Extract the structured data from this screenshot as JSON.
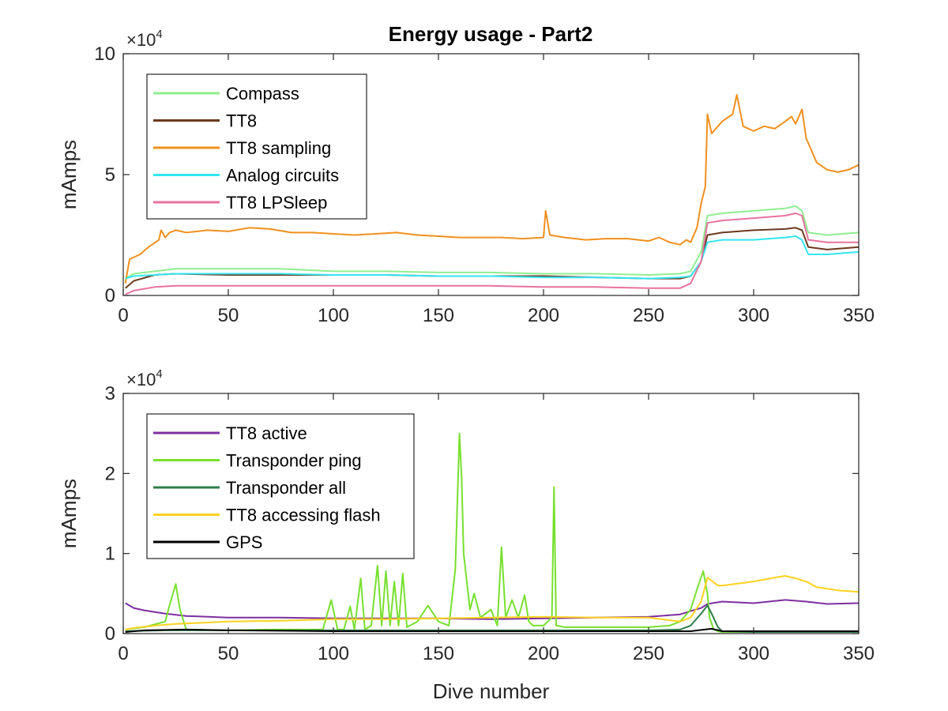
{
  "title": "Energy usage - Part2",
  "chart_data": [
    {
      "type": "line",
      "title": "Energy usage - Part2",
      "xlabel": "",
      "ylabel": "mAmps",
      "exponent_label": "×10",
      "exponent_power": "4",
      "xlim": [
        0,
        350
      ],
      "ylim": [
        0,
        100000
      ],
      "xticks": [
        0,
        50,
        100,
        150,
        200,
        250,
        300,
        350
      ],
      "yticks": [
        0,
        50000,
        100000
      ],
      "ytick_labels": [
        "0",
        "5",
        "10"
      ],
      "xtick_labels": [
        "0",
        "50",
        "100",
        "150",
        "200",
        "250",
        "300",
        "350"
      ],
      "legend_position": "top-left",
      "grid": false,
      "series": [
        {
          "name": "Compass",
          "color": "#90ee90",
          "x": [
            1,
            5,
            15,
            25,
            50,
            75,
            100,
            125,
            150,
            175,
            200,
            225,
            250,
            265,
            270,
            275,
            278,
            285,
            300,
            315,
            320,
            323,
            326,
            335,
            350
          ],
          "y": [
            7000,
            9000,
            10000,
            11000,
            11000,
            11000,
            10000,
            10000,
            9500,
            9500,
            9000,
            9000,
            8500,
            9000,
            10000,
            18000,
            33000,
            34000,
            35000,
            36000,
            37000,
            35000,
            26000,
            25000,
            26000
          ]
        },
        {
          "name": "TT8",
          "color": "#6b3a1e",
          "x": [
            1,
            5,
            15,
            25,
            50,
            75,
            100,
            125,
            150,
            175,
            200,
            225,
            250,
            265,
            270,
            275,
            278,
            285,
            300,
            315,
            320,
            323,
            326,
            335,
            350
          ],
          "y": [
            3000,
            6000,
            8500,
            9000,
            8500,
            8500,
            8500,
            8500,
            8000,
            8000,
            8000,
            7500,
            7000,
            7000,
            8000,
            14000,
            25000,
            26000,
            27000,
            27500,
            28000,
            27000,
            20000,
            19000,
            20000
          ]
        },
        {
          "name": "TT8 sampling",
          "color": "#f0901e",
          "x": [
            1,
            3,
            8,
            12,
            17,
            18,
            20,
            22,
            25,
            30,
            40,
            50,
            60,
            70,
            80,
            90,
            100,
            110,
            120,
            130,
            140,
            150,
            160,
            170,
            180,
            190,
            200,
            201,
            203,
            210,
            220,
            230,
            240,
            250,
            255,
            260,
            265,
            268,
            270,
            273,
            275,
            277,
            278,
            280,
            285,
            290,
            292,
            295,
            300,
            305,
            310,
            315,
            318,
            320,
            323,
            325,
            330,
            335,
            340,
            345,
            350
          ],
          "y": [
            5000,
            15000,
            17000,
            20000,
            23000,
            27000,
            24000,
            26000,
            27000,
            26000,
            27000,
            26500,
            28000,
            27500,
            26000,
            26000,
            25500,
            25000,
            25500,
            26000,
            25000,
            24500,
            24000,
            24000,
            24000,
            23500,
            24000,
            35000,
            25000,
            24000,
            23000,
            23500,
            23500,
            22500,
            24000,
            22000,
            21000,
            23000,
            22000,
            28000,
            38000,
            45000,
            75000,
            67000,
            72000,
            75000,
            83000,
            70000,
            68000,
            70000,
            69000,
            72000,
            74000,
            71000,
            77000,
            65000,
            55000,
            52000,
            51000,
            52000,
            54000
          ]
        },
        {
          "name": "Analog circuits",
          "color": "#33e6f0",
          "x": [
            1,
            5,
            15,
            25,
            50,
            75,
            100,
            125,
            150,
            175,
            200,
            225,
            250,
            265,
            270,
            275,
            278,
            285,
            300,
            315,
            320,
            323,
            326,
            335,
            350
          ],
          "y": [
            7000,
            8000,
            8500,
            9000,
            9000,
            9000,
            8500,
            8500,
            8000,
            8000,
            7500,
            7500,
            7000,
            7500,
            8000,
            14000,
            22000,
            23000,
            23000,
            24000,
            24500,
            23000,
            17000,
            17000,
            18000
          ]
        },
        {
          "name": "TT8 LPSleep",
          "color": "#e8729e",
          "x": [
            1,
            5,
            15,
            25,
            50,
            75,
            100,
            125,
            150,
            175,
            200,
            225,
            250,
            265,
            270,
            275,
            278,
            285,
            300,
            315,
            320,
            323,
            326,
            335,
            350
          ],
          "y": [
            500,
            2000,
            3500,
            4000,
            4000,
            4000,
            4000,
            4000,
            4000,
            4000,
            3500,
            3500,
            3000,
            3000,
            5000,
            14000,
            30000,
            31000,
            32000,
            33000,
            34000,
            33000,
            23000,
            22000,
            22000
          ]
        }
      ]
    },
    {
      "type": "line",
      "title": "",
      "xlabel": "Dive number",
      "ylabel": "mAmps",
      "exponent_label": "×10",
      "exponent_power": "4",
      "xlim": [
        0,
        350
      ],
      "ylim": [
        0,
        30000
      ],
      "xticks": [
        0,
        50,
        100,
        150,
        200,
        250,
        300,
        350
      ],
      "yticks": [
        0,
        10000,
        20000,
        30000
      ],
      "ytick_labels": [
        "0",
        "1",
        "2",
        "3"
      ],
      "xtick_labels": [
        "0",
        "50",
        "100",
        "150",
        "200",
        "250",
        "300",
        "350"
      ],
      "legend_position": "top-left",
      "grid": false,
      "series": [
        {
          "name": "TT8 active",
          "color": "#7e2fa0",
          "x": [
            1,
            5,
            10,
            20,
            30,
            50,
            75,
            100,
            125,
            150,
            175,
            200,
            225,
            250,
            265,
            270,
            275,
            278,
            285,
            300,
            315,
            325,
            335,
            350
          ],
          "y": [
            3800,
            3200,
            2900,
            2500,
            2200,
            2000,
            2000,
            1900,
            1900,
            1900,
            1800,
            1900,
            2000,
            2100,
            2400,
            2800,
            3200,
            3700,
            4000,
            3800,
            4200,
            4000,
            3700,
            3800
          ]
        },
        {
          "name": "Transponder ping",
          "color": "#77e02e",
          "x": [
            1,
            10,
            20,
            22,
            25,
            27,
            30,
            50,
            70,
            95,
            99,
            102,
            105,
            108,
            110,
            113,
            115,
            118,
            121,
            123,
            125,
            127,
            129,
            131,
            133,
            135,
            140,
            145,
            150,
            155,
            158,
            160,
            161,
            162,
            165,
            167,
            170,
            175,
            178,
            180,
            182,
            185,
            188,
            191,
            193,
            195,
            200,
            204,
            205,
            206,
            210,
            215,
            220,
            230,
            240,
            250,
            260,
            265,
            270,
            273,
            276,
            278,
            279,
            281,
            283,
            285,
            295,
            310,
            330,
            350
          ],
          "y": [
            500,
            800,
            1500,
            3500,
            6200,
            3000,
            500,
            400,
            500,
            500,
            4200,
            500,
            500,
            3400,
            500,
            6900,
            500,
            1000,
            8500,
            1000,
            7800,
            1000,
            6500,
            1000,
            7500,
            800,
            1500,
            3500,
            1500,
            1000,
            8000,
            25000,
            19500,
            10000,
            3000,
            5000,
            2000,
            3000,
            1000,
            10800,
            2000,
            4200,
            2000,
            4800,
            1500,
            1000,
            1000,
            2000,
            18300,
            1000,
            800,
            800,
            800,
            800,
            800,
            800,
            1000,
            1500,
            3000,
            5500,
            7800,
            5000,
            2000,
            500,
            300,
            200,
            200,
            200,
            200,
            200
          ]
        },
        {
          "name": "Transponder all",
          "color": "#2f7d4a",
          "x": [
            1,
            20,
            50,
            100,
            150,
            200,
            250,
            265,
            270,
            275,
            278,
            280,
            283,
            285,
            300,
            350
          ],
          "y": [
            300,
            400,
            400,
            400,
            400,
            400,
            400,
            500,
            1000,
            2500,
            3500,
            2500,
            800,
            300,
            200,
            200
          ]
        },
        {
          "name": "TT8 accessing flash",
          "color": "#ffd21e",
          "x": [
            1,
            5,
            15,
            25,
            50,
            75,
            100,
            125,
            150,
            175,
            200,
            225,
            250,
            265,
            270,
            275,
            278,
            283,
            285,
            300,
            310,
            315,
            320,
            325,
            330,
            340,
            350
          ],
          "y": [
            500,
            700,
            1000,
            1200,
            1500,
            1600,
            1800,
            1800,
            1900,
            2000,
            2100,
            2000,
            2000,
            1500,
            2000,
            4000,
            7000,
            6000,
            6000,
            6500,
            7000,
            7200,
            6900,
            6500,
            5800,
            5400,
            5200
          ]
        },
        {
          "name": "GPS",
          "color": "#000000",
          "x": [
            1,
            10,
            30,
            50,
            100,
            150,
            200,
            250,
            270,
            280,
            285,
            300,
            320,
            350
          ],
          "y": [
            200,
            400,
            500,
            400,
            300,
            300,
            300,
            300,
            300,
            600,
            300,
            300,
            300,
            300
          ]
        }
      ]
    }
  ]
}
